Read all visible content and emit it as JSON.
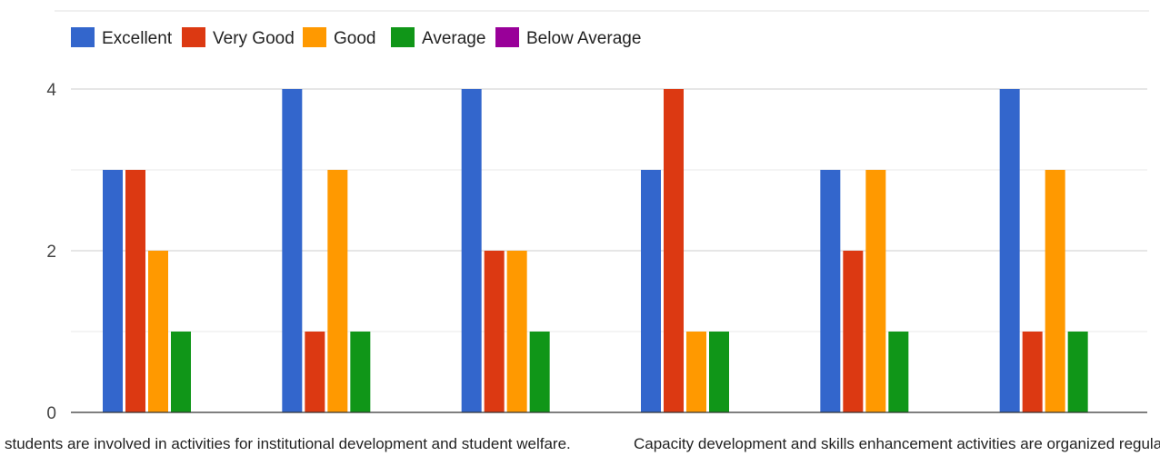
{
  "chart_data": {
    "type": "bar",
    "title": "",
    "xlabel": "",
    "ylabel": "",
    "ylim": [
      0,
      4
    ],
    "yticks": [
      0,
      2,
      4
    ],
    "grid": true,
    "legend_position": "top-left",
    "categories": [
      "Students are involved in activities for institutional development and student welfare.",
      "",
      "",
      "Capacity development and skills enhancement activities are organized regularly.",
      "",
      ""
    ],
    "visible_category_labels": [
      {
        "index": 0,
        "text": "students are involved in activities for institutional development and student welfare."
      },
      {
        "index": 3,
        "text": "Capacity development and skills enhancement activities are organized regularly."
      }
    ],
    "series": [
      {
        "name": "Excellent",
        "color": "#3366CC",
        "values": [
          3,
          4,
          4,
          3,
          3,
          4
        ]
      },
      {
        "name": "Very Good",
        "color": "#DC3912",
        "values": [
          3,
          1,
          2,
          4,
          2,
          1
        ]
      },
      {
        "name": "Good",
        "color": "#FF9900",
        "values": [
          2,
          3,
          2,
          1,
          3,
          3
        ]
      },
      {
        "name": "Average",
        "color": "#109618",
        "values": [
          1,
          1,
          1,
          1,
          1,
          1
        ]
      },
      {
        "name": "Below Average",
        "color": "#990099",
        "values": [
          0,
          0,
          0,
          0,
          0,
          0
        ]
      }
    ]
  }
}
